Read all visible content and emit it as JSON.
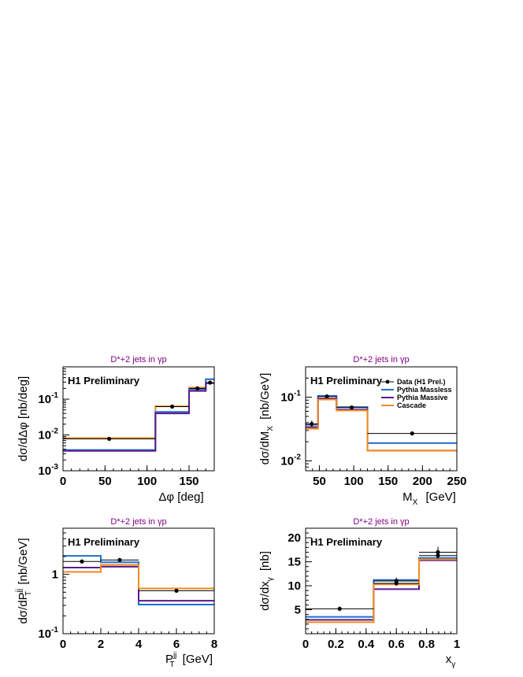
{
  "colors": {
    "data": "#000000",
    "pythia_massless": "#1f6fd1",
    "pythia_massive": "#5b1a8c",
    "cascade": "#f28a1e",
    "title": "#800080"
  },
  "chart_data": [
    {
      "type": "histogram",
      "title": "D*+2 jets in γp",
      "annotation": "H1 Preliminary",
      "xlabel": "Δφ [deg]",
      "ylabel": "dσ/dΔφ [nb/deg]",
      "xlim": [
        0,
        180
      ],
      "ylim": [
        0.001,
        0.8
      ],
      "yscale": "log",
      "xticks": [
        0,
        50,
        100,
        150
      ],
      "yticks": [
        {
          "v": 0.001,
          "b": "10",
          "e": "-3"
        },
        {
          "v": 0.01,
          "b": "10",
          "e": "-2"
        },
        {
          "v": 0.1,
          "b": "10",
          "e": "-1"
        }
      ],
      "edges": [
        0,
        110,
        150,
        170,
        180
      ],
      "points": [
        {
          "x": 55,
          "y": 0.0078,
          "xlo": 0,
          "xhi": 110,
          "ylo": 0.0068,
          "yhi": 0.0088
        },
        {
          "x": 130,
          "y": 0.062,
          "xlo": 110,
          "xhi": 150,
          "ylo": 0.057,
          "yhi": 0.067
        },
        {
          "x": 160,
          "y": 0.2,
          "xlo": 150,
          "xhi": 170,
          "ylo": 0.185,
          "yhi": 0.215
        },
        {
          "x": 175,
          "y": 0.29,
          "xlo": 170,
          "xhi": 180,
          "ylo": 0.26,
          "yhi": 0.32
        }
      ],
      "series": [
        {
          "name": "Cascade",
          "key": "cascade",
          "values": [
            0.0082,
            0.063,
            0.21,
            0.36
          ]
        },
        {
          "name": "Pythia Massless",
          "key": "pythia_massless",
          "values": [
            0.0038,
            0.044,
            0.19,
            0.36
          ]
        },
        {
          "name": "Pythia Massive",
          "key": "pythia_massive",
          "values": [
            0.0036,
            0.04,
            0.17,
            0.28
          ]
        }
      ]
    },
    {
      "type": "histogram",
      "title": "D*+2 jets in γp",
      "annotation": "H1 Preliminary",
      "xlabel": "M",
      "xlabel_sub": "X",
      "xlabel_unit": "[GeV]",
      "ylabel": "dσ/dM",
      "ylabel_sub": "X",
      "ylabel_unit": "[nb/GeV]",
      "xlim": [
        30,
        250
      ],
      "ylim": [
        0.007,
        0.3
      ],
      "yscale": "log",
      "xticks": [
        50,
        100,
        150,
        200,
        250
      ],
      "yticks": [
        {
          "v": 0.01,
          "b": "10",
          "e": "-2"
        },
        {
          "v": 0.1,
          "b": "10",
          "e": "-1"
        }
      ],
      "edges": [
        30,
        48,
        75,
        120,
        250
      ],
      "points": [
        {
          "x": 39,
          "y": 0.038,
          "xlo": 30,
          "xhi": 48,
          "ylo": 0.034,
          "yhi": 0.043
        },
        {
          "x": 61,
          "y": 0.103,
          "xlo": 48,
          "xhi": 75,
          "ylo": 0.097,
          "yhi": 0.109
        },
        {
          "x": 97,
          "y": 0.069,
          "xlo": 75,
          "xhi": 120,
          "ylo": 0.064,
          "yhi": 0.074
        },
        {
          "x": 185,
          "y": 0.027,
          "xlo": 120,
          "xhi": 250,
          "ylo": 0.025,
          "yhi": 0.029
        }
      ],
      "series": [
        {
          "name": "Pythia Massless",
          "key": "pythia_massless",
          "values": [
            0.037,
            0.105,
            0.07,
            0.019
          ]
        },
        {
          "name": "Pythia Massive",
          "key": "pythia_massive",
          "values": [
            0.034,
            0.096,
            0.064,
            0.0145
          ]
        },
        {
          "name": "Cascade",
          "key": "cascade",
          "values": [
            0.032,
            0.092,
            0.062,
            0.0145
          ]
        }
      ],
      "legend": {
        "position": "top-right",
        "entries": [
          {
            "label": "Data (H1 Prel.)",
            "key": "data"
          },
          {
            "label": "Pythia Massless",
            "key": "pythia_massless"
          },
          {
            "label": "Pythia Massive",
            "key": "pythia_massive"
          },
          {
            "label": "Cascade",
            "key": "cascade"
          }
        ]
      }
    },
    {
      "type": "histogram",
      "title": "D*+2 jets in γp",
      "annotation": "H1 Preliminary",
      "xlabel": "P",
      "xlabel_sub": "T",
      "xlabel_sup": "jj",
      "xlabel_unit": "[GeV]",
      "ylabel": "dσ/dP",
      "ylabel_sub": "T",
      "ylabel_sup": "jj",
      "ylabel_unit": "[nb/GeV]",
      "xlim": [
        0,
        8
      ],
      "ylim": [
        0.1,
        6
      ],
      "yscale": "log",
      "xticks": [
        0,
        2,
        4,
        6,
        8
      ],
      "yticks": [
        {
          "v": 0.1,
          "b": "10",
          "e": "-1"
        },
        {
          "v": 1,
          "b": "1",
          "e": ""
        }
      ],
      "edges": [
        0,
        2,
        4,
        8
      ],
      "points": [
        {
          "x": 1,
          "y": 1.65,
          "xlo": 0,
          "xhi": 2,
          "ylo": 1.55,
          "yhi": 1.75
        },
        {
          "x": 3,
          "y": 1.75,
          "xlo": 2,
          "xhi": 4,
          "ylo": 1.65,
          "yhi": 1.85
        },
        {
          "x": 6,
          "y": 0.53,
          "xlo": 4,
          "xhi": 8,
          "ylo": 0.5,
          "yhi": 0.56
        }
      ],
      "series": [
        {
          "name": "Pythia Massless",
          "key": "pythia_massless",
          "values": [
            2.05,
            1.6,
            0.31
          ]
        },
        {
          "name": "Pythia Massive",
          "key": "pythia_massive",
          "values": [
            1.3,
            1.35,
            0.36
          ]
        },
        {
          "name": "Cascade",
          "key": "cascade",
          "values": [
            1.1,
            1.45,
            0.58
          ]
        }
      ]
    },
    {
      "type": "histogram",
      "title": "D*+2 jets in γp",
      "annotation": "H1 Preliminary",
      "xlabel": "x",
      "xlabel_sub": "γ",
      "ylabel": "dσ/dx",
      "ylabel_sub": "γ",
      "ylabel_unit": "[nb]",
      "xlim": [
        0,
        1
      ],
      "ylim": [
        0,
        22
      ],
      "yscale": "linear",
      "xticks": [
        0,
        0.2,
        0.4,
        0.6,
        0.8,
        1
      ],
      "yticks": [
        {
          "v": 5,
          "b": "5",
          "e": ""
        },
        {
          "v": 10,
          "b": "10",
          "e": ""
        },
        {
          "v": 15,
          "b": "15",
          "e": ""
        },
        {
          "v": 20,
          "b": "20",
          "e": ""
        }
      ],
      "edges": [
        0,
        0.45,
        0.75,
        1
      ],
      "points": [
        {
          "x": 0.225,
          "y": 5.2,
          "xlo": 0,
          "xhi": 0.45,
          "ylo": 4.7,
          "yhi": 5.7
        },
        {
          "x": 0.6,
          "y": 11.0,
          "xlo": 0.45,
          "xhi": 0.75,
          "ylo": 10.3,
          "yhi": 11.7
        },
        {
          "x": 0.6,
          "y": 10.5,
          "xlo": 0.45,
          "xhi": 0.75,
          "ylo": 10.0,
          "yhi": 11.0
        },
        {
          "x": 0.875,
          "y": 17.0,
          "xlo": 0.75,
          "xhi": 1,
          "ylo": 15.9,
          "yhi": 18.1
        },
        {
          "x": 0.875,
          "y": 16.3,
          "xlo": 0.75,
          "xhi": 1,
          "ylo": 15.6,
          "yhi": 17.0
        }
      ],
      "series": [
        {
          "name": "Pythia Massless",
          "key": "pythia_massless",
          "values": [
            3.5,
            11.2,
            15.8
          ]
        },
        {
          "name": "Pythia Massive",
          "key": "pythia_massive",
          "values": [
            2.9,
            9.3,
            15.3
          ]
        },
        {
          "name": "Cascade",
          "key": "cascade",
          "values": [
            2.4,
            10.3,
            15.5
          ]
        }
      ]
    }
  ]
}
